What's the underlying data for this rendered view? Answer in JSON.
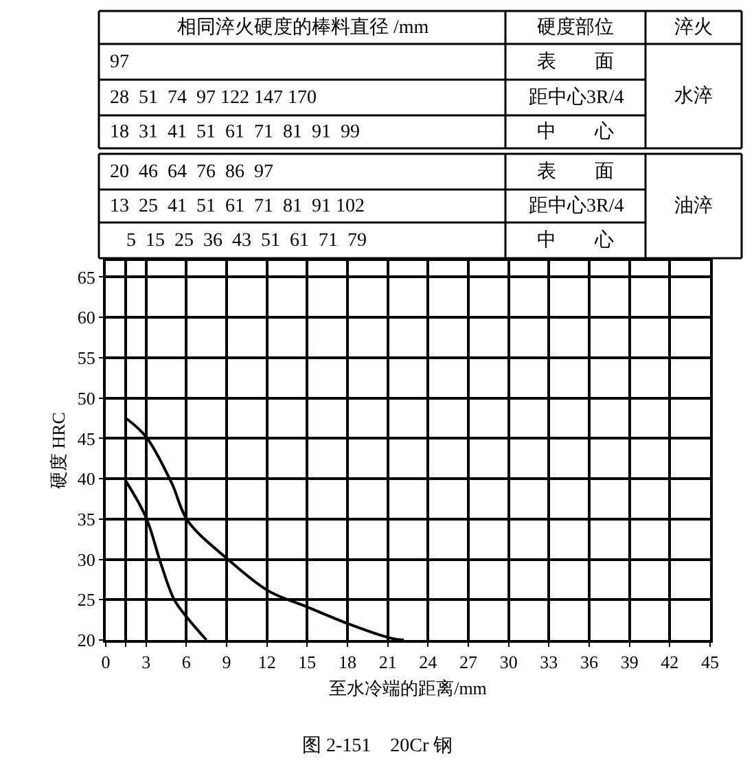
{
  "chart_data": {
    "type": "line",
    "xlabel": "至水冷端的距离/mm",
    "ylabel": "硬度 HRC",
    "series": [
      {
        "color": "#000000",
        "x": [
          1.5,
          3,
          4.9,
          6.1,
          9.1,
          12.1,
          15,
          18.4,
          21.3,
          22.2
        ],
        "values": [
          47.5,
          45.2,
          39.5,
          34.8,
          30,
          26.1,
          24.1,
          21.8,
          20.2,
          20
        ]
      },
      {
        "color": "#000000",
        "x": [
          1.5,
          3,
          4.1,
          5.1,
          6.1,
          7.5
        ],
        "values": [
          39.7,
          35.2,
          29.5,
          25,
          22.7,
          20
        ]
      }
    ],
    "xlim": [
      0,
      45
    ],
    "ylim": [
      20,
      67
    ],
    "xticks": [
      0,
      {
        "value": 1.5,
        "label": null
      },
      3,
      6,
      9,
      12,
      15,
      18,
      21,
      24,
      27,
      30,
      33,
      36,
      39,
      42,
      45
    ],
    "yticks": [
      20,
      25,
      30,
      35,
      40,
      45,
      50,
      55,
      60,
      65
    ],
    "grid": true,
    "marker": "none",
    "line_style": "solid",
    "annotations": [
      "相同淬火硬度的棒料直径 /mm",
      "硬度部位",
      "淬火",
      "97",
      "表　　面",
      "28  51  74  97 122 147 170",
      "距中心3R/4",
      "18  31  41  51  61  71  81  91  99",
      "中　　心",
      "水淬",
      "20  46  64  76  86  97",
      "表　　面",
      "13  25  41  51  61  71  81  91 102",
      "距中心3R/4",
      "5  15  25  36  43  51  61  71  79",
      "中　　心",
      "油淬",
      "图 2-151　20Cr 钢"
    ]
  }
}
